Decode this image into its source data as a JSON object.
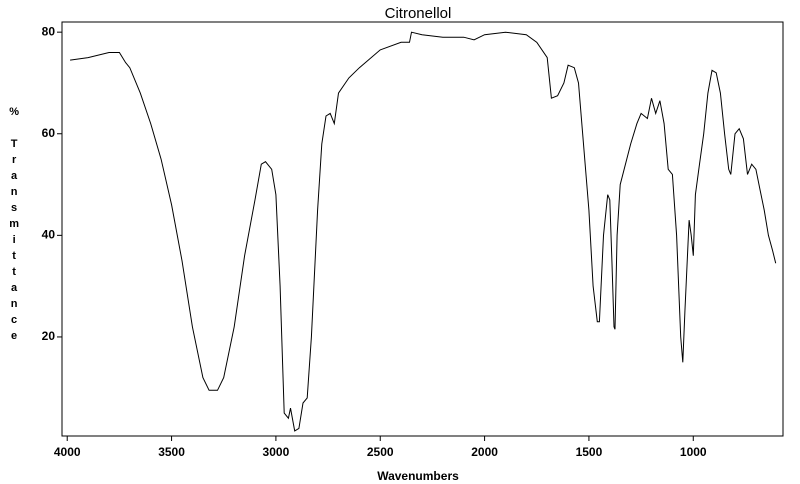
{
  "chart_data": {
    "type": "line",
    "title": "Citronellol",
    "xlabel": "Wavenumbers",
    "ylabel": "% Transmittance",
    "x": [
      3986,
      3900,
      3800,
      3750,
      3720,
      3700,
      3650,
      3600,
      3550,
      3500,
      3450,
      3400,
      3350,
      3320,
      3280,
      3250,
      3200,
      3150,
      3100,
      3070,
      3050,
      3020,
      3000,
      2980,
      2960,
      2940,
      2930,
      2910,
      2890,
      2870,
      2850,
      2830,
      2800,
      2780,
      2760,
      2740,
      2720,
      2700,
      2650,
      2600,
      2500,
      2400,
      2360,
      2350,
      2300,
      2200,
      2100,
      2050,
      2000,
      1900,
      1800,
      1750,
      1700,
      1680,
      1650,
      1620,
      1600,
      1570,
      1550,
      1500,
      1480,
      1460,
      1450,
      1430,
      1410,
      1400,
      1390,
      1380,
      1375,
      1365,
      1350,
      1300,
      1270,
      1250,
      1220,
      1200,
      1180,
      1160,
      1140,
      1120,
      1100,
      1080,
      1060,
      1050,
      1040,
      1020,
      1010,
      1000,
      990,
      970,
      950,
      930,
      910,
      890,
      870,
      850,
      830,
      820,
      800,
      780,
      760,
      740,
      730,
      720,
      700,
      680,
      660,
      640,
      620,
      605
    ],
    "series": [
      {
        "name": "Citronellol",
        "color": "#000000",
        "values": [
          74.5,
          75,
          76,
          76,
          74,
          73,
          68,
          62,
          55,
          46,
          35,
          22,
          12,
          9.5,
          9.5,
          12,
          22,
          36,
          47,
          54,
          54.5,
          53,
          48,
          30,
          5,
          4,
          6,
          1.5,
          2,
          7,
          8,
          20,
          45,
          58,
          63.5,
          64,
          62,
          68,
          71,
          73,
          76.5,
          78,
          78,
          80,
          79.5,
          79,
          79,
          78.5,
          79.5,
          80,
          79.5,
          78,
          75,
          67,
          67.5,
          70,
          73.5,
          73,
          70,
          45,
          30,
          23,
          23,
          40,
          48,
          47,
          35,
          22,
          21.5,
          40,
          50,
          58,
          62,
          64,
          63,
          67,
          64,
          66.5,
          62,
          53,
          52,
          40,
          20,
          15,
          25,
          43,
          40,
          36,
          48,
          54,
          60,
          68,
          72.5,
          72,
          68,
          60,
          53,
          52,
          60,
          61,
          59,
          52,
          53,
          54,
          53,
          49,
          45,
          40,
          37,
          34.5
        ]
      }
    ],
    "xlim": [
      4025,
      570
    ],
    "ylim": [
      0.5,
      82
    ],
    "xticks": [
      4000,
      3500,
      3000,
      2500,
      2000,
      1500,
      1000
    ],
    "yticks": [
      20,
      40,
      60,
      80
    ]
  }
}
